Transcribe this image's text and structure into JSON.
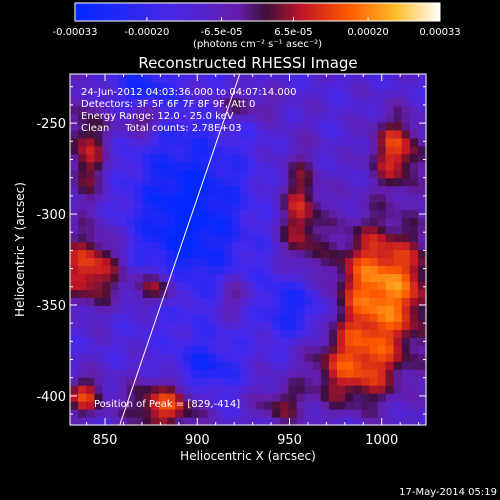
{
  "chart_data": {
    "type": "heatmap",
    "title": "Reconstructed RHESSI Image",
    "xlabel": "Heliocentric X (arcsec)",
    "ylabel": "Heliocentric Y (arcsec)",
    "xlim": [
      831,
      1024
    ],
    "ylim": [
      -416,
      -223
    ],
    "xticks": [
      850,
      900,
      950,
      1000
    ],
    "yticks": [
      -250,
      -300,
      -350,
      -400
    ],
    "colorbar": {
      "range": [
        -0.00033,
        0.00033
      ],
      "ticks": [
        "-0.00033",
        "-0.00020",
        "-6.5e-05",
        "6.5e-05",
        "0.00020",
        "0.00033"
      ],
      "tick_values": [
        -0.00033,
        -0.0002,
        -6.5e-05,
        6.5e-05,
        0.0002,
        0.00033
      ],
      "unit": "(photons cm⁻² s⁻¹ asec⁻²)"
    },
    "annotations": [
      "24-Jun-2012 04:03:36.000 to 04:07:14.000",
      "Detectors: 3F 5F 6F 7F 8F 9F, Att 0",
      "Energy Range: 12.0 - 25.0 keV",
      "Clean     Total counts: 2.78E+03"
    ],
    "peak_label": "Position of Peak = [829,-414]",
    "limb_line": [
      [
        858,
        -416
      ],
      [
        923,
        -223
      ]
    ],
    "sources": [
      {
        "x": 1000,
        "y": -340,
        "amp": 0.00033,
        "sx": 20,
        "sy": 25
      },
      {
        "x": 1008,
        "y": -265,
        "amp": 0.00024,
        "sx": 10,
        "sy": 14
      },
      {
        "x": 985,
        "y": -385,
        "amp": 0.00022,
        "sx": 18,
        "sy": 16
      },
      {
        "x": 956,
        "y": -300,
        "amp": 0.0002,
        "sx": 8,
        "sy": 24
      },
      {
        "x": 842,
        "y": -330,
        "amp": 0.00026,
        "sx": 12,
        "sy": 14
      },
      {
        "x": 878,
        "y": -340,
        "amp": 0.00022,
        "sx": 10,
        "sy": 7
      },
      {
        "x": 882,
        "y": -405,
        "amp": 0.00025,
        "sx": 14,
        "sy": 10
      },
      {
        "x": 840,
        "y": -265,
        "amp": 0.0002,
        "sx": 8,
        "sy": 20
      },
      {
        "x": 838,
        "y": -400,
        "amp": 0.00022,
        "sx": 8,
        "sy": 8
      },
      {
        "x": 870,
        "y": -248,
        "amp": 0.00016,
        "sx": 8,
        "sy": 6
      },
      {
        "x": 925,
        "y": -240,
        "amp": 0.00012,
        "sx": 14,
        "sy": 6
      },
      {
        "x": 920,
        "y": -345,
        "amp": 0.00013,
        "sx": 8,
        "sy": 8
      },
      {
        "x": 945,
        "y": -405,
        "amp": 0.00014,
        "sx": 10,
        "sy": 8
      }
    ],
    "dims": [
      {
        "x": 895,
        "y": -300,
        "amp": -0.00022,
        "sx": 22,
        "sy": 35
      },
      {
        "x": 955,
        "y": -350,
        "amp": -0.00018,
        "sx": 14,
        "sy": 14
      },
      {
        "x": 870,
        "y": -230,
        "amp": -0.00014,
        "sx": 12,
        "sy": 8
      },
      {
        "x": 905,
        "y": -385,
        "amp": -0.00015,
        "sx": 12,
        "sy": 10
      }
    ]
  },
  "footer": {
    "date": "17-May-2014 05:19"
  }
}
